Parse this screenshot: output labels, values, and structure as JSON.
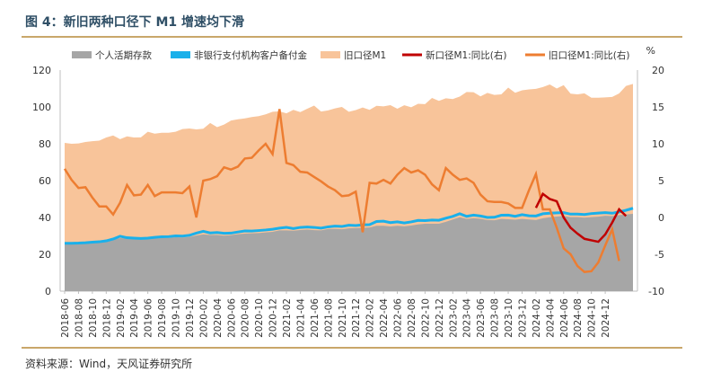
{
  "title": "图 4：新旧两种口径下 M1 增速均下滑",
  "source": "资料来源：Wind，天风证券研究所",
  "chart_data": {
    "type": "area",
    "title": "",
    "left_axis": {
      "unit": "",
      "ylim": [
        0,
        120
      ],
      "ticks": [
        0,
        20,
        40,
        60,
        80,
        100,
        120
      ]
    },
    "right_axis": {
      "unit": "%",
      "ylim": [
        -10,
        20
      ],
      "ticks": [
        -10,
        -5,
        0,
        5,
        10,
        15,
        20
      ]
    },
    "x_tick_labels": [
      "2018-06",
      "2018-08",
      "2018-10",
      "2018-12",
      "2019-02",
      "2019-04",
      "2019-06",
      "2019-08",
      "2019-10",
      "2019-12",
      "2020-02",
      "2020-04",
      "2020-06",
      "2020-08",
      "2020-10",
      "2020-12",
      "2021-02",
      "2021-04",
      "2021-06",
      "2021-08",
      "2021-10",
      "2021-12",
      "2022-02",
      "2022-04",
      "2022-06",
      "2022-08",
      "2022-10",
      "2022-12",
      "2023-02",
      "2023-04",
      "2023-06",
      "2023-08",
      "2023-10",
      "2023-12",
      "2024-02",
      "2024-04",
      "2024-06",
      "2024-08",
      "2024-10",
      "2024-12"
    ],
    "legend": [
      "个人活期存款",
      "非银行支付机构客户备付金",
      "旧口径M1",
      "新口径M1:同比(右)",
      "旧口径M1:同比(右)"
    ],
    "legend_position": "top",
    "colors": {
      "personal": "#a6a6a6",
      "payment": "#1ab0ea",
      "old_m1": "#f8c49a",
      "new_yoy": "#c00000",
      "old_yoy": "#ed7d31"
    },
    "start_month": "2018-06",
    "series": [
      {
        "name": "个人活期存款",
        "axis": "left",
        "kind": "area",
        "values": [
          25.8,
          25.8,
          25.9,
          26.0,
          26.3,
          26.5,
          27.0,
          28.0,
          28.8,
          28.6,
          28.3,
          28.1,
          28.3,
          28.6,
          28.8,
          28.8,
          29.3,
          29.1,
          29.4,
          30.2,
          30.8,
          30.5,
          30.5,
          30.1,
          30.4,
          30.9,
          31.2,
          31.4,
          31.5,
          31.9,
          32.2,
          33.0,
          33.0,
          32.8,
          33.2,
          33.4,
          33.1,
          33.0,
          33.7,
          33.8,
          33.6,
          34.1,
          34.2,
          34.4,
          34.6,
          35.5,
          35.5,
          35.1,
          35.5,
          35.2,
          35.6,
          36.2,
          36.6,
          36.6,
          36.6,
          37.6,
          38.9,
          40.1,
          39.2,
          39.6,
          39.3,
          38.6,
          38.5,
          39.2,
          39.0,
          38.8,
          39.2,
          38.9,
          38.6,
          39.6,
          40.1,
          40.5,
          40.8,
          40.2,
          40.2,
          39.9,
          40.2,
          40.4,
          40.9,
          40.7,
          41.3,
          41.6,
          42.0
        ]
      },
      {
        "name": "非银行支付机构客户备付金",
        "axis": "left",
        "kind": "area",
        "values": [
          26.0,
          26.0,
          26.1,
          26.3,
          26.6,
          26.8,
          27.3,
          28.3,
          29.8,
          29.0,
          28.8,
          28.6,
          28.8,
          29.2,
          29.5,
          29.6,
          30.0,
          29.9,
          30.3,
          31.5,
          32.5,
          31.6,
          31.8,
          31.4,
          31.5,
          32.1,
          32.7,
          32.6,
          32.9,
          33.2,
          33.6,
          34.2,
          34.6,
          34.0,
          34.6,
          34.8,
          34.6,
          34.2,
          34.9,
          35.3,
          35.1,
          35.8,
          35.6,
          36.0,
          36.1,
          37.8,
          38.0,
          37.2,
          37.6,
          37.0,
          37.6,
          38.4,
          38.3,
          38.6,
          38.5,
          39.6,
          40.6,
          42.0,
          40.6,
          41.3,
          40.8,
          40.0,
          40.1,
          41.2,
          41.3,
          40.6,
          41.5,
          40.9,
          40.8,
          42.0,
          42.3,
          42.5,
          42.6,
          41.8,
          41.8,
          41.6,
          42.1,
          42.4,
          42.6,
          42.3,
          43.0,
          43.9,
          45.0
        ]
      },
      {
        "name": "旧口径M1",
        "axis": "left",
        "kind": "area",
        "values": [
          80.5,
          80.0,
          80.2,
          81.0,
          81.4,
          81.7,
          83.4,
          84.5,
          82.5,
          84.0,
          83.4,
          83.5,
          86.5,
          85.5,
          86.0,
          86.0,
          86.5,
          88.0,
          88.3,
          87.8,
          88.2,
          91.3,
          89.0,
          90.4,
          92.6,
          93.3,
          93.8,
          94.5,
          95.0,
          96.0,
          97.4,
          97.6,
          96.5,
          98.4,
          97.2,
          99.0,
          100.7,
          97.5,
          98.1,
          99.2,
          100.0,
          97.4,
          98.3,
          99.7,
          98.4,
          100.6,
          100.3,
          101.0,
          99.0,
          100.9,
          99.8,
          101.7,
          101.5,
          104.9,
          103.3,
          104.7,
          104.3,
          105.6,
          108.1,
          108.0,
          105.7,
          107.6,
          106.5,
          106.8,
          110.5,
          107.7,
          109.0,
          109.5,
          109.8,
          110.8,
          112.2,
          110.0,
          111.8,
          107.2,
          106.8,
          107.4,
          105.0,
          105.0,
          105.2,
          105.4,
          107.3,
          111.4,
          112.5
        ]
      },
      {
        "name": "新口径M1:同比(右)",
        "axis": "right",
        "kind": "line",
        "values": [
          null,
          null,
          null,
          null,
          null,
          null,
          null,
          null,
          null,
          null,
          null,
          null,
          null,
          null,
          null,
          null,
          null,
          null,
          null,
          null,
          null,
          null,
          null,
          null,
          null,
          null,
          null,
          null,
          null,
          null,
          null,
          null,
          null,
          null,
          null,
          null,
          null,
          null,
          null,
          null,
          null,
          null,
          null,
          null,
          null,
          null,
          null,
          null,
          null,
          null,
          null,
          null,
          null,
          null,
          null,
          null,
          null,
          null,
          null,
          null,
          null,
          null,
          null,
          null,
          null,
          null,
          null,
          null,
          1.3,
          3.2,
          2.5,
          2.2,
          0.0,
          -1.4,
          -2.2,
          -2.9,
          -3.1,
          -3.3,
          -2.3,
          -0.7,
          1.1,
          0.2
        ]
      },
      {
        "name": "旧口径M1:同比(右)",
        "axis": "right",
        "kind": "line",
        "values": [
          6.6,
          5.1,
          4.0,
          4.1,
          2.7,
          1.5,
          1.5,
          0.4,
          2.0,
          4.4,
          3.0,
          3.1,
          4.4,
          2.9,
          3.4,
          3.4,
          3.4,
          3.3,
          4.2,
          0.0,
          5.0,
          5.2,
          5.6,
          6.8,
          6.5,
          6.9,
          8.0,
          8.1,
          9.1,
          10.0,
          8.6,
          14.7,
          7.4,
          7.1,
          6.2,
          6.1,
          5.5,
          4.9,
          4.2,
          3.7,
          2.9,
          3.0,
          3.5,
          -2.0,
          4.7,
          4.6,
          5.1,
          4.6,
          5.8,
          6.7,
          6.1,
          6.4,
          5.8,
          4.5,
          3.7,
          6.7,
          5.8,
          5.1,
          5.3,
          4.7,
          3.1,
          2.2,
          2.1,
          2.1,
          1.9,
          1.3,
          1.3,
          3.7,
          5.9,
          1.1,
          1.1,
          -1.4,
          -4.2,
          -5.0,
          -6.6,
          -7.4,
          -7.3,
          -6.1,
          -3.8,
          -1.6,
          -5.9
        ]
      }
    ]
  }
}
